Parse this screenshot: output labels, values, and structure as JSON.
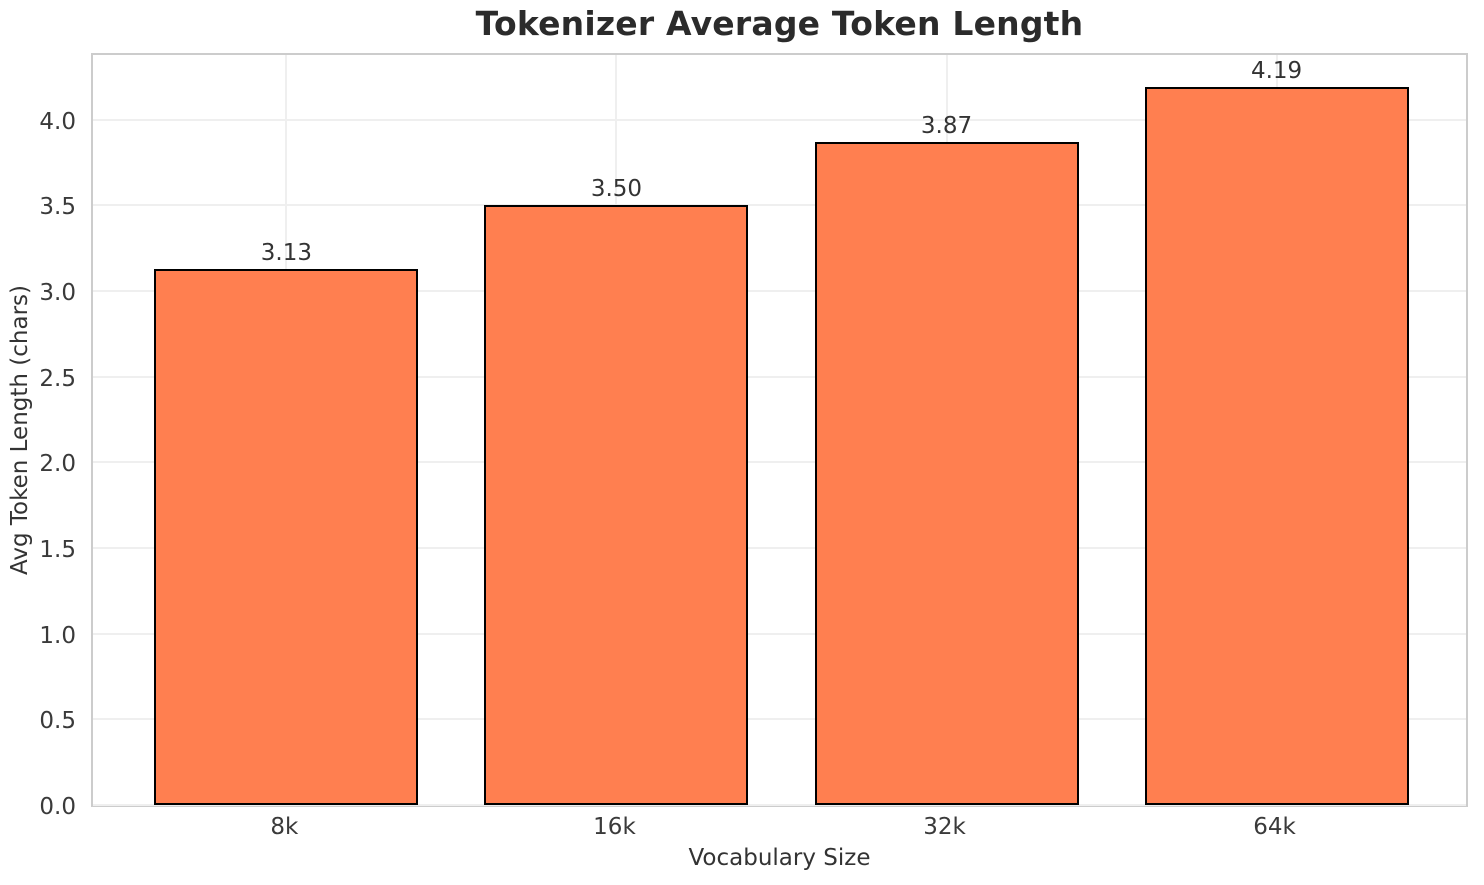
{
  "chart_data": {
    "type": "bar",
    "title": "Tokenizer Average Token Length",
    "xlabel": "Vocabulary Size",
    "ylabel": "Avg Token Length (chars)",
    "categories": [
      "8k",
      "16k",
      "32k",
      "64k"
    ],
    "values": [
      3.13,
      3.5,
      3.87,
      4.19
    ],
    "bar_labels": [
      "3.13",
      "3.50",
      "3.87",
      "4.19"
    ],
    "ylim": [
      0,
      4.4
    ],
    "xlim": [
      -0.586,
      3.586
    ],
    "yticks": [
      "0.0",
      "0.5",
      "1.0",
      "1.5",
      "2.0",
      "2.5",
      "3.0",
      "3.5",
      "4.0"
    ],
    "grid": true,
    "legend_position": "none",
    "bar_width_units": 0.8,
    "colors": {
      "bar_fill": "#FF7F50",
      "bar_edge": "#000000",
      "grid": "#efefef",
      "spine": "#cccccc",
      "title_text": "#2b2b2b",
      "tick_text": "#3a3a3a",
      "label_text": "#333333",
      "background": "#ffffff"
    }
  }
}
